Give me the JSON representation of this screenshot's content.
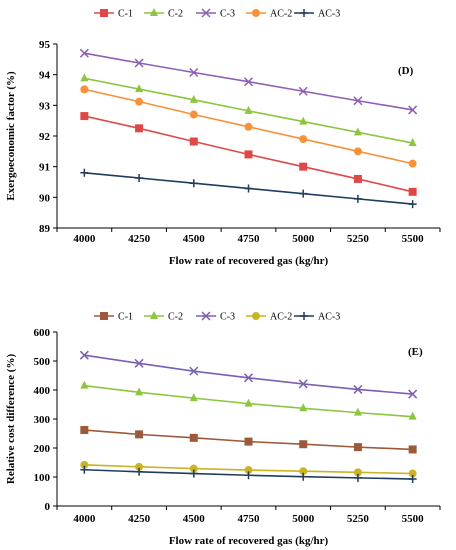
{
  "chart_data": [
    {
      "type": "line",
      "panel_label": "(D)",
      "xlabel": "Flow rate of recovered gas (kg/hr)",
      "ylabel": "Exergoeconomic factor (%)",
      "x": [
        4000,
        4250,
        4500,
        4750,
        5000,
        5250,
        5500
      ],
      "ylim": [
        89,
        95
      ],
      "yticks": [
        89,
        90,
        91,
        92,
        93,
        94,
        95
      ],
      "grid": false,
      "legend_position": "top",
      "series": [
        {
          "name": "C-1",
          "color": "#e04848",
          "marker": "square",
          "values": [
            92.65,
            92.25,
            91.82,
            91.4,
            91.0,
            90.6,
            90.18
          ]
        },
        {
          "name": "C-2",
          "color": "#8cc63f",
          "marker": "triangle",
          "values": [
            93.88,
            93.53,
            93.18,
            92.82,
            92.47,
            92.12,
            91.77
          ]
        },
        {
          "name": "C-3",
          "color": "#8e5fb5",
          "marker": "x",
          "values": [
            94.7,
            94.38,
            94.07,
            93.77,
            93.46,
            93.15,
            92.85
          ]
        },
        {
          "name": "AC-2",
          "color": "#f7923a",
          "marker": "circle",
          "values": [
            93.52,
            93.12,
            92.7,
            92.3,
            91.9,
            91.5,
            91.1
          ]
        },
        {
          "name": "AC-3",
          "color": "#1f3c5e",
          "marker": "plus",
          "values": [
            90.8,
            90.63,
            90.46,
            90.29,
            90.12,
            89.95,
            89.78
          ]
        }
      ]
    },
    {
      "type": "line",
      "panel_label": "(E)",
      "xlabel": "Flow rate of recovered gas (kg/hr)",
      "ylabel": "Relative cost difference (%)",
      "x": [
        4000,
        4250,
        4500,
        4750,
        5000,
        5250,
        5500
      ],
      "ylim": [
        0,
        600
      ],
      "yticks": [
        0,
        100,
        200,
        300,
        400,
        500,
        600
      ],
      "grid": false,
      "legend_position": "top",
      "series": [
        {
          "name": "C-1",
          "color": "#9c5a3a",
          "marker": "square",
          "values": [
            262,
            247,
            235,
            222,
            213,
            203,
            195
          ]
        },
        {
          "name": "C-2",
          "color": "#8cc63f",
          "marker": "triangle",
          "values": [
            415,
            392,
            372,
            353,
            337,
            322,
            308
          ]
        },
        {
          "name": "C-3",
          "color": "#7b5fb0",
          "marker": "x",
          "values": [
            520,
            492,
            465,
            442,
            421,
            402,
            386
          ]
        },
        {
          "name": "AC-2",
          "color": "#c9b424",
          "marker": "circle",
          "values": [
            142,
            135,
            129,
            124,
            120,
            116,
            112
          ]
        },
        {
          "name": "AC-3",
          "color": "#1f3c5e",
          "marker": "plus",
          "values": [
            125,
            118,
            112,
            106,
            101,
            97,
            93
          ]
        }
      ]
    }
  ]
}
